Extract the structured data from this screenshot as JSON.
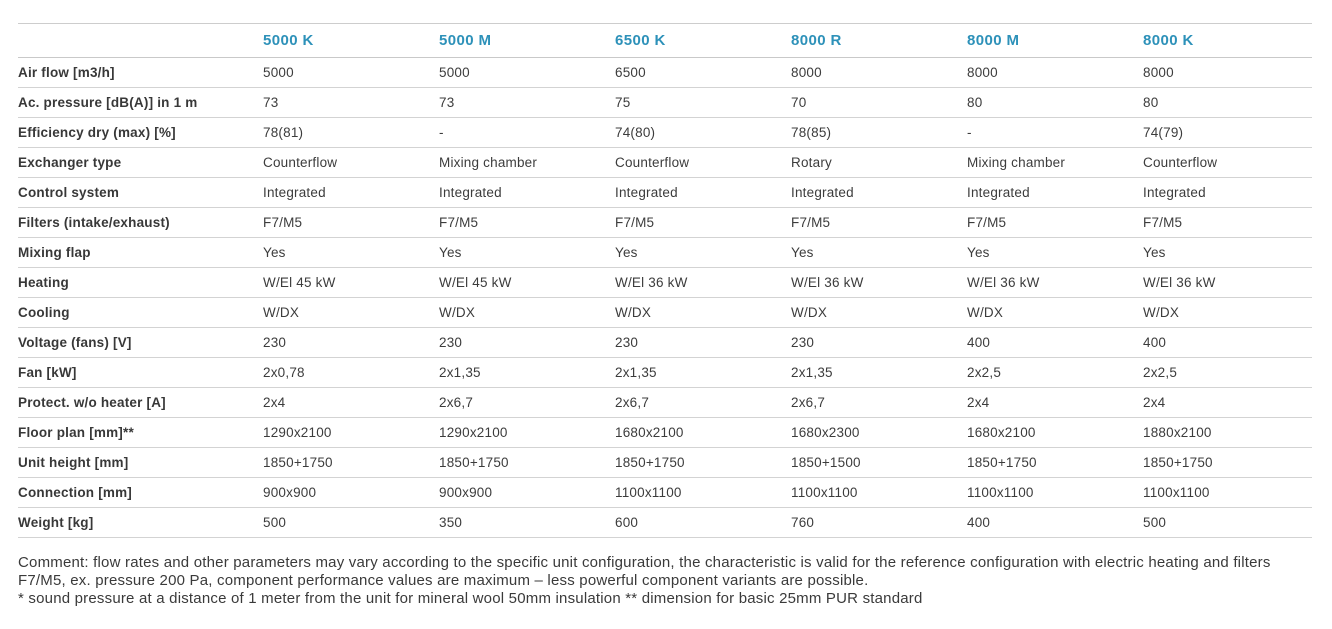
{
  "table": {
    "columns": [
      "5000 K",
      "5000 M",
      "6500 K",
      "8000 R",
      "8000 M",
      "8000 K"
    ],
    "rows": [
      {
        "label": "Air flow [m3/h]",
        "values": [
          "5000",
          "5000",
          "6500",
          "8000",
          "8000",
          "8000"
        ]
      },
      {
        "label": "Ac. pressure [dB(A)] in 1 m",
        "values": [
          "73",
          "73",
          "75",
          "70",
          "80",
          "80"
        ]
      },
      {
        "label": "Efficiency dry (max) [%]",
        "values": [
          "78(81)",
          "-",
          "74(80)",
          "78(85)",
          "-",
          "74(79)"
        ]
      },
      {
        "label": "Exchanger type",
        "values": [
          "Counterflow",
          "Mixing chamber",
          "Counterflow",
          "Rotary",
          "Mixing chamber",
          "Counterflow"
        ]
      },
      {
        "label": "Control system",
        "values": [
          "Integrated",
          "Integrated",
          "Integrated",
          "Integrated",
          "Integrated",
          "Integrated"
        ]
      },
      {
        "label": "Filters (intake/exhaust)",
        "values": [
          "F7/M5",
          "F7/M5",
          "F7/M5",
          "F7/M5",
          "F7/M5",
          "F7/M5"
        ]
      },
      {
        "label": "Mixing flap",
        "values": [
          "Yes",
          "Yes",
          "Yes",
          "Yes",
          "Yes",
          "Yes"
        ]
      },
      {
        "label": "Heating",
        "values": [
          "W/El 45 kW",
          "W/El 45 kW",
          "W/El 36 kW",
          "W/El 36 kW",
          "W/El 36 kW",
          "W/El 36 kW"
        ]
      },
      {
        "label": "Cooling",
        "values": [
          "W/DX",
          "W/DX",
          "W/DX",
          "W/DX",
          "W/DX",
          "W/DX"
        ]
      },
      {
        "label": "Voltage (fans) [V]",
        "values": [
          "230",
          "230",
          "230",
          "230",
          "400",
          "400"
        ]
      },
      {
        "label": "Fan [kW]",
        "values": [
          "2x0,78",
          "2x1,35",
          "2x1,35",
          "2x1,35",
          "2x2,5",
          "2x2,5"
        ]
      },
      {
        "label": "Protect. w/o heater [A]",
        "values": [
          "2x4",
          "2x6,7",
          "2x6,7",
          "2x6,7",
          "2x4",
          "2x4"
        ]
      },
      {
        "label": "Floor plan [mm]**",
        "values": [
          "1290x2100",
          "1290x2100",
          "1680x2100",
          "1680x2300",
          "1680x2100",
          "1880x2100"
        ]
      },
      {
        "label": "Unit height [mm]",
        "values": [
          "1850+1750",
          "1850+1750",
          "1850+1750",
          "1850+1500",
          "1850+1750",
          "1850+1750"
        ]
      },
      {
        "label": "Connection [mm]",
        "values": [
          "900x900",
          "900x900",
          "1100x1100",
          "1100x1100",
          "1100x1100",
          "1100x1100"
        ]
      },
      {
        "label": "Weight [kg]",
        "values": [
          "500",
          "350",
          "600",
          "760",
          "400",
          "500"
        ]
      }
    ]
  },
  "comment": {
    "main": "Comment: flow rates and other parameters may vary according to the specific unit configuration, the characteristic is valid for the reference configuration with electric heating and filters F7/M5, ex. pressure 200 Pa, component performance values are maximum – less powerful component variants are possible.",
    "footnote": "* sound pressure at a distance of 1 meter from the unit for mineral wool 50mm insulation ** dimension for basic 25mm PUR standard"
  },
  "colors": {
    "accent": "#2d91b9",
    "text": "#3c3c3c",
    "border": "#d3d3d3"
  }
}
